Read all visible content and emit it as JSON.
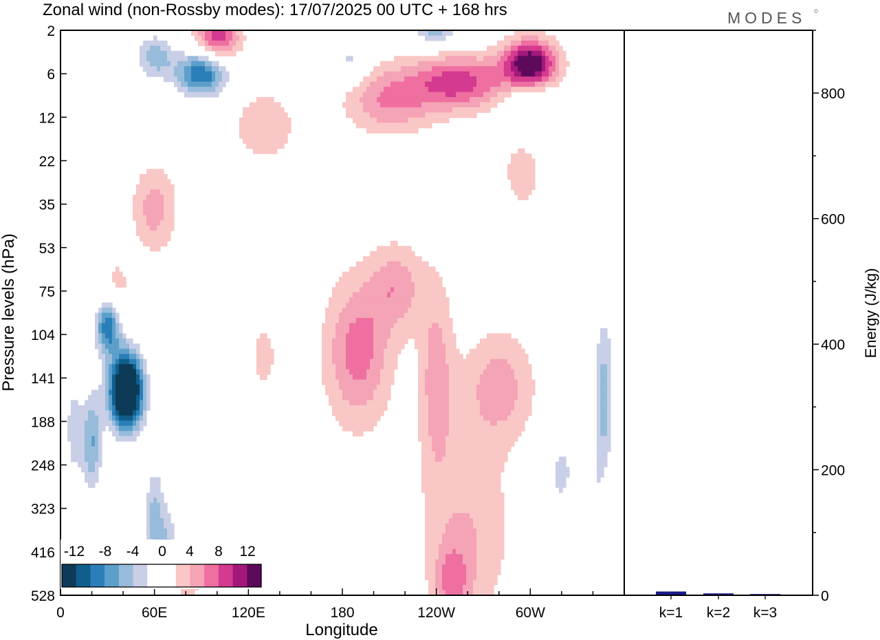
{
  "title": "Zonal wind (non-Rossby modes):  17/07/2025  00 UTC  + 168 hrs",
  "logo_text": "MODES",
  "chart_data": [
    {
      "type": "heatmap",
      "title": "Zonal wind (non-Rossby modes):  17/07/2025  00 UTC  + 168 hrs",
      "xlabel": "Longitude",
      "ylabel": "Pressure levels (hPa)",
      "x_ticks": [
        "0",
        "60E",
        "120E",
        "180",
        "120W",
        "60W"
      ],
      "x_tick_degrees": [
        0,
        60,
        120,
        180,
        240,
        300
      ],
      "x_range": [
        0,
        360
      ],
      "y_ticks": [
        "2",
        "6",
        "12",
        "22",
        "35",
        "53",
        "75",
        "104",
        "141",
        "188",
        "248",
        "323",
        "416",
        "528"
      ],
      "colorbar": {
        "labels": [
          "-12",
          "-8",
          "-4",
          "0",
          "4",
          "8",
          "12"
        ],
        "levels": [
          -14,
          -12,
          -10,
          -8,
          -6,
          -4,
          -2,
          2,
          4,
          6,
          8,
          10,
          12,
          14
        ],
        "colors": [
          "#0d3a57",
          "#0f5e8c",
          "#2b7fb8",
          "#5d9fcb",
          "#97bbdb",
          "#c9cfe6",
          "#ffffff",
          "#ffffff",
          "#f9c7c5",
          "#f5a3b6",
          "#ee6fa0",
          "#d43a8f",
          "#a3187a",
          "#5e0a5c"
        ]
      },
      "features": [
        {
          "name": "neg",
          "lon": 42,
          "lev": 8.3,
          "amp": -22,
          "sx": 8,
          "sy": 0.65
        },
        {
          "name": "neg",
          "lon": 30,
          "lev": 6.8,
          "amp": -12,
          "sx": 6,
          "sy": 0.45
        },
        {
          "name": "neg",
          "lon": 20,
          "lev": 9.5,
          "amp": -8,
          "sx": 5,
          "sy": 0.9
        },
        {
          "name": "neg",
          "lon": 60,
          "lev": 11.3,
          "amp": -7,
          "sx": 5,
          "sy": 1.0
        },
        {
          "name": "neg",
          "lon": 70,
          "lev": 12.0,
          "amp": -6,
          "sx": 4,
          "sy": 0.8
        },
        {
          "name": "neg",
          "lon": 347,
          "lev": 8.5,
          "amp": -7,
          "sx": 5,
          "sy": 1.6
        },
        {
          "name": "neg",
          "lon": 320,
          "lev": 10.2,
          "amp": -5,
          "sx": 6,
          "sy": 0.6
        },
        {
          "name": "neg",
          "lon": 345,
          "lev": 11.0,
          "amp": -4,
          "sx": 5,
          "sy": 0.7
        },
        {
          "name": "neg",
          "lon": 90,
          "lev": 1.0,
          "amp": -12,
          "sx": 12,
          "sy": 0.4
        },
        {
          "name": "neg",
          "lon": 60,
          "lev": 0.6,
          "amp": -7,
          "sx": 9,
          "sy": 0.4
        },
        {
          "name": "neg",
          "lon": 240,
          "lev": 0.0,
          "amp": -7,
          "sx": 12,
          "sy": 0.25
        },
        {
          "name": "neg",
          "lon": 185,
          "lev": 0.7,
          "amp": -5,
          "sx": 7,
          "sy": 0.35
        },
        {
          "name": "neg",
          "lon": 300,
          "lev": 1.8,
          "amp": -5,
          "sx": 12,
          "sy": 0.55
        },
        {
          "name": "neg",
          "lon": 8,
          "lev": 9.2,
          "amp": -5,
          "sx": 4,
          "sy": 0.9
        },
        {
          "name": "pos",
          "lon": 300,
          "lev": 0.8,
          "amp": 15,
          "sx": 12,
          "sy": 0.4
        },
        {
          "name": "pos",
          "lon": 255,
          "lev": 1.2,
          "amp": 9,
          "sx": 22,
          "sy": 0.45
        },
        {
          "name": "pos",
          "lon": 210,
          "lev": 1.6,
          "amp": 6,
          "sx": 20,
          "sy": 0.55
        },
        {
          "name": "pos",
          "lon": 100,
          "lev": 0.2,
          "amp": 10,
          "sx": 10,
          "sy": 0.35
        },
        {
          "name": "pos",
          "lon": 130,
          "lev": 2.2,
          "amp": 4,
          "sx": 14,
          "sy": 0.55
        },
        {
          "name": "pos",
          "lon": 60,
          "lev": 4.1,
          "amp": 5,
          "sx": 10,
          "sy": 0.7
        },
        {
          "name": "pos",
          "lon": 190,
          "lev": 7.4,
          "amp": 7,
          "sx": 15,
          "sy": 1.2
        },
        {
          "name": "pos",
          "lon": 215,
          "lev": 5.9,
          "amp": 5,
          "sx": 12,
          "sy": 0.7
        },
        {
          "name": "pos",
          "lon": 240,
          "lev": 8.0,
          "amp": 5,
          "sx": 8,
          "sy": 1.6
        },
        {
          "name": "pos",
          "lon": 280,
          "lev": 8.2,
          "amp": 5,
          "sx": 16,
          "sy": 0.9
        },
        {
          "name": "pos",
          "lon": 260,
          "lev": 11.5,
          "amp": 4,
          "sx": 20,
          "sy": 1.6
        },
        {
          "name": "pos",
          "lon": 250,
          "lev": 12.7,
          "amp": 5,
          "sx": 8,
          "sy": 0.6
        },
        {
          "name": "pos",
          "lon": 130,
          "lev": 7.5,
          "amp": 3,
          "sx": 6,
          "sy": 0.6
        },
        {
          "name": "pos",
          "lon": 350,
          "lev": 10.8,
          "amp": 4,
          "sx": 5,
          "sy": 0.6
        },
        {
          "name": "pos",
          "lon": 295,
          "lev": 3.2,
          "amp": 4,
          "sx": 8,
          "sy": 0.6
        },
        {
          "name": "pos",
          "lon": 35,
          "lev": 6.0,
          "amp": 3,
          "sx": 8,
          "sy": 0.6
        },
        {
          "name": "pos",
          "lon": 80,
          "lev": 12.6,
          "amp": 3,
          "sx": 8,
          "sy": 0.8
        }
      ]
    },
    {
      "type": "bar",
      "categories": [
        "k=1",
        "k=2",
        "k=3"
      ],
      "values": [
        6,
        3,
        2
      ],
      "ylabel": "Energy (J/kg)",
      "y_ticks": [
        "0",
        "200",
        "400",
        "600",
        "800"
      ],
      "ylim": [
        0,
        900
      ],
      "bar_color": "#1a1a8c"
    }
  ]
}
